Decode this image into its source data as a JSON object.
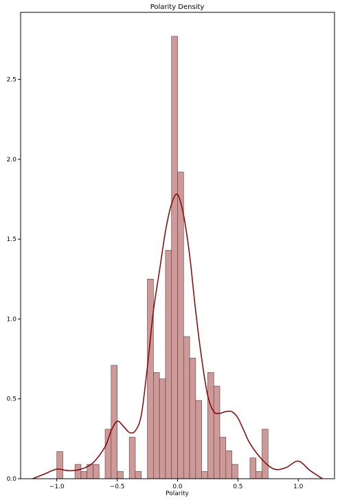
{
  "chart_data": {
    "type": "bar",
    "title": "Polarity Density",
    "xlabel": "Polarity",
    "ylabel": "",
    "xlim": [
      -1.3,
      1.3
    ],
    "ylim": [
      0,
      2.92
    ],
    "xticks": [
      -1.0,
      -0.5,
      0.0,
      0.5,
      1.0
    ],
    "xtick_labels": [
      "−1.0",
      "−0.5",
      "0.0",
      "0.5",
      "1.0"
    ],
    "yticks": [
      0.0,
      0.5,
      1.0,
      1.5,
      2.0,
      2.5
    ],
    "ytick_labels": [
      "0.0",
      "0.5",
      "1.0",
      "1.5",
      "2.0",
      "2.5"
    ],
    "grid": false,
    "colors": {
      "bar_fill": "#cd9999",
      "bar_edge": "#5a3a3a",
      "kde_line": "#8b0000"
    },
    "histogram": {
      "bin_edges": [
        -1.0,
        -0.95,
        -0.9,
        -0.85,
        -0.8,
        -0.75,
        -0.7,
        -0.65,
        -0.6,
        -0.55,
        -0.5,
        -0.45,
        -0.4,
        -0.35,
        -0.3,
        -0.25,
        -0.2,
        -0.15,
        -0.1,
        -0.05,
        0.0,
        0.05,
        0.1,
        0.15,
        0.2,
        0.25,
        0.3,
        0.35,
        0.4,
        0.45,
        0.5,
        0.55,
        0.6,
        0.65,
        0.7,
        0.75,
        0.8,
        0.85,
        0.9,
        0.95,
        1.0
      ],
      "values": [
        0.17,
        0.0,
        0.0,
        0.09,
        0.045,
        0.09,
        0.09,
        0.0,
        0.31,
        0.71,
        0.045,
        0.0,
        0.26,
        0.045,
        0.0,
        1.25,
        0.665,
        0.625,
        1.43,
        2.77,
        1.92,
        0.89,
        0.755,
        0.49,
        0.045,
        0.665,
        0.58,
        0.26,
        0.175,
        0.09,
        0.0,
        0.0,
        0.13,
        0.045,
        0.31,
        0.0,
        0.0,
        0.0,
        0.0,
        0.0
      ]
    },
    "kde": {
      "x": [
        -1.2,
        -1.1,
        -1.0,
        -0.9,
        -0.8,
        -0.7,
        -0.6,
        -0.55,
        -0.5,
        -0.45,
        -0.4,
        -0.35,
        -0.3,
        -0.25,
        -0.2,
        -0.15,
        -0.1,
        -0.05,
        0.0,
        0.05,
        0.1,
        0.15,
        0.2,
        0.25,
        0.3,
        0.35,
        0.4,
        0.45,
        0.5,
        0.55,
        0.6,
        0.7,
        0.8,
        0.9,
        1.0,
        1.1,
        1.2
      ],
      "y": [
        0.0,
        0.03,
        0.06,
        0.05,
        0.06,
        0.1,
        0.2,
        0.3,
        0.36,
        0.33,
        0.29,
        0.3,
        0.4,
        0.7,
        1.05,
        1.3,
        1.55,
        1.72,
        1.78,
        1.65,
        1.4,
        1.05,
        0.75,
        0.52,
        0.42,
        0.41,
        0.42,
        0.42,
        0.38,
        0.3,
        0.22,
        0.12,
        0.06,
        0.07,
        0.11,
        0.05,
        0.0
      ]
    }
  }
}
